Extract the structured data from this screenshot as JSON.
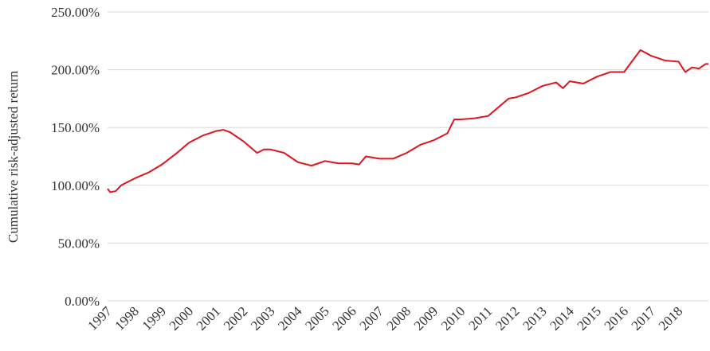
{
  "chart_data": {
    "type": "line",
    "y_label": "Cumulative risk-adjusted return",
    "x": [
      1997.0,
      1997.1,
      1997.3,
      1997.5,
      1998.0,
      1998.5,
      1999.0,
      1999.5,
      2000.0,
      2000.5,
      2001.0,
      2001.25,
      2001.5,
      2002.0,
      2002.5,
      2002.75,
      2003.0,
      2003.5,
      2004.0,
      2004.5,
      2005.0,
      2005.5,
      2006.0,
      2006.25,
      2006.5,
      2007.0,
      2007.5,
      2008.0,
      2008.5,
      2009.0,
      2009.5,
      2009.75,
      2010.0,
      2010.5,
      2011.0,
      2011.5,
      2011.75,
      2012.0,
      2012.5,
      2013.0,
      2013.5,
      2013.75,
      2014.0,
      2014.5,
      2015.0,
      2015.5,
      2016.0,
      2016.25,
      2016.6,
      2017.0,
      2017.5,
      2018.0,
      2018.25,
      2018.5,
      2018.75,
      2019.0,
      2019.1
    ],
    "series": [
      {
        "name": "Cumulative risk-adjusted return",
        "color": "#e0141e",
        "values": [
          97,
          94,
          95,
          100,
          106,
          111,
          118,
          127,
          137,
          143,
          147,
          148,
          146,
          138,
          128,
          131,
          131,
          128,
          120,
          117,
          121,
          119,
          119,
          118,
          125,
          123,
          123,
          128,
          135,
          139,
          145,
          157,
          157,
          158,
          160,
          170,
          175,
          176,
          180,
          186,
          189,
          184,
          190,
          188,
          194,
          198,
          198,
          206,
          217,
          212,
          208,
          207,
          198,
          202,
          201,
          205,
          205
        ]
      }
    ],
    "xlim": [
      1997,
      2019.1
    ],
    "xticks": [
      1997,
      1998,
      1999,
      2000,
      2001,
      2002,
      2003,
      2004,
      2005,
      2006,
      2007,
      2008,
      2009,
      2010,
      2011,
      2012,
      2013,
      2014,
      2015,
      2016,
      2017,
      2018
    ],
    "ylim": [
      0,
      250
    ],
    "yticks": [
      {
        "value": 0,
        "label": "0.00%"
      },
      {
        "value": 50,
        "label": "50.00%"
      },
      {
        "value": 100,
        "label": "100.00%"
      },
      {
        "value": 150,
        "label": "150.00%"
      },
      {
        "value": 200,
        "label": "200.00%"
      },
      {
        "value": 250,
        "label": "250.00%"
      }
    ],
    "grid": true
  }
}
